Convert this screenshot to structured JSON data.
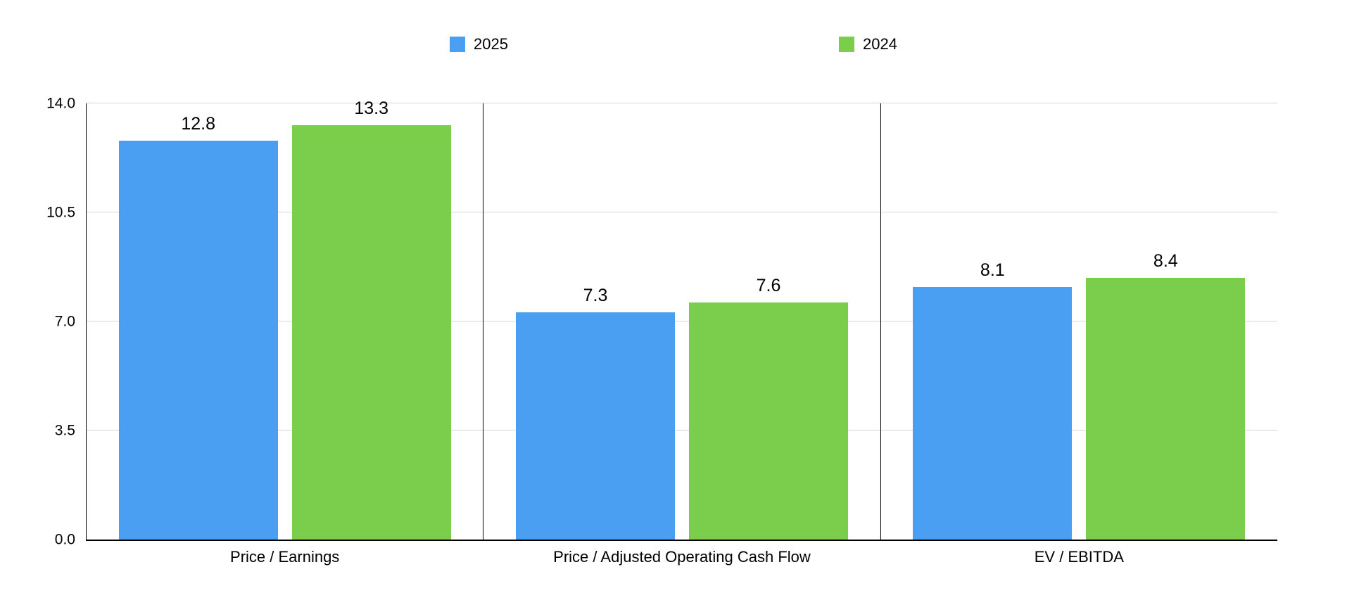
{
  "colors": {
    "series_2025": "#4b9ff2",
    "series_2024": "#7bce4c",
    "gridline": "#d8d8d8",
    "axis": "#000000",
    "background": "#ffffff",
    "text": "#000000"
  },
  "chart_data": {
    "type": "bar",
    "categories": [
      "Price / Earnings",
      "Price / Adjusted Operating Cash Flow",
      "EV / EBITDA"
    ],
    "series": [
      {
        "name": "2025",
        "color": "#4b9ff2",
        "values": [
          12.8,
          7.3,
          8.1
        ]
      },
      {
        "name": "2024",
        "color": "#7bce4c",
        "values": [
          13.3,
          7.6,
          8.4
        ]
      }
    ],
    "title": "",
    "xlabel": "",
    "ylabel": "",
    "ylim": [
      0,
      14
    ],
    "yticks": [
      0.0,
      3.5,
      7.0,
      10.5,
      14.0
    ],
    "ytick_labels": [
      "0.0",
      "3.5",
      "7.0",
      "10.5",
      "14.0"
    ],
    "grid": true,
    "legend_position": "top",
    "data_labels": true,
    "panel_separators": true
  }
}
